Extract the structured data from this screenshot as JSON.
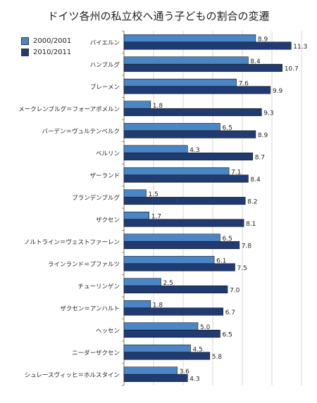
{
  "chart_data": {
    "type": "bar",
    "orientation": "horizontal",
    "title": "ドイツ各州の私立校へ通う子どもの割合の変遷",
    "categories": [
      "バイエルン",
      "ハンブルグ",
      "ブレーメン",
      "メークレンブルグ＝フォーアポメルン",
      "バーデン＝ヴュルテンベルク",
      "ベルリン",
      "ザーランド",
      "ブランデンブルグ",
      "ザクセン",
      "ノルトライン＝ヴェストファーレン",
      "ラインランド＝プファルツ",
      "チューリンゲン",
      "ザクセン＝アンハルト",
      "ヘッセン",
      "ニーダーザクセン",
      "シュレースヴィッヒ＝ホルスタイン"
    ],
    "series": [
      {
        "name": "2000/2001",
        "color": "#4a86c5",
        "values": [
          8.9,
          8.4,
          7.6,
          1.8,
          6.5,
          4.3,
          7.1,
          1.5,
          1.7,
          6.5,
          6.1,
          2.5,
          1.8,
          5.0,
          4.5,
          3.6
        ]
      },
      {
        "name": "2010/2011",
        "color": "#203a72",
        "values": [
          11.3,
          10.7,
          9.9,
          9.3,
          8.9,
          8.7,
          8.4,
          8.2,
          8.1,
          7.8,
          7.5,
          7.0,
          6.7,
          6.5,
          5.8,
          4.3
        ]
      }
    ],
    "xlim": [
      0,
      12
    ],
    "grid": true,
    "legend": "top-left"
  }
}
